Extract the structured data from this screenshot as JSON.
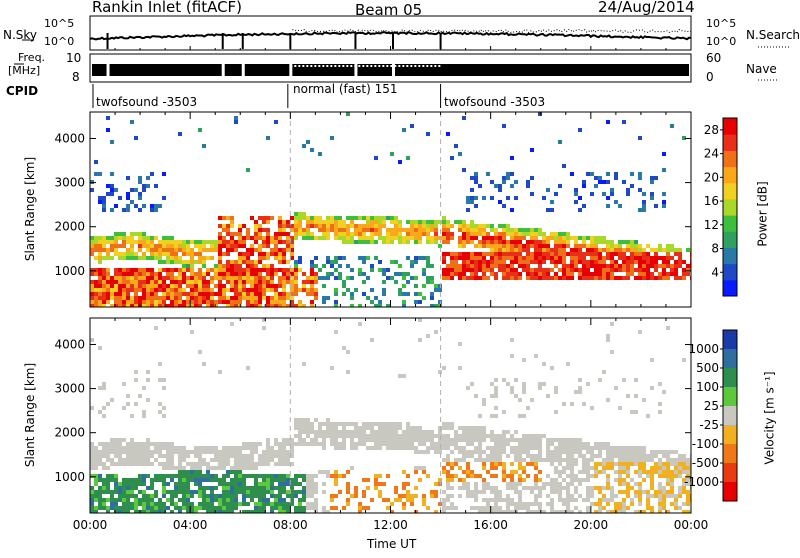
{
  "header": {
    "station": "Rankin Inlet (fitACF)",
    "beam": "Beam 05",
    "date": "24/Aug/2014"
  },
  "noise_panel": {
    "left_label": "N.Sky",
    "right_label": "N.Search",
    "left_ticks": [
      "10^5",
      "10^0"
    ],
    "right_ticks": [
      "10^5",
      "10^0"
    ]
  },
  "freq_panel": {
    "left_label_1": "Freq.",
    "left_label_2": "[MHz]",
    "right_label": "Nave",
    "left_ticks": [
      "10",
      "8"
    ],
    "right_ticks": [
      "60",
      "0"
    ]
  },
  "cpid": {
    "label": "CPID",
    "segments": [
      {
        "name": "twofsound -3503",
        "start_hour": 0.0,
        "end_hour": 7.9
      },
      {
        "name": "normal (fast) 151",
        "start_hour": 7.9,
        "end_hour": 14.0
      },
      {
        "name": "twofsound -3503",
        "start_hour": 14.0,
        "end_hour": 24.0
      }
    ]
  },
  "chart_data": [
    {
      "type": "heatmap",
      "parameter": "Power",
      "ylabel": "Slant Range [km]",
      "ylim": [
        180,
        4600
      ],
      "yticks": [
        1000,
        2000,
        3000,
        4000
      ],
      "xlim": [
        0,
        24
      ],
      "colorbar": {
        "label": "Power [dB]",
        "ticks": [
          "4",
          "8",
          "12",
          "16",
          "20",
          "24",
          "28"
        ],
        "range": [
          0,
          30
        ],
        "colors": [
          "#0a1aff",
          "#1e48c8",
          "#2878a8",
          "#2ea060",
          "#3cbf3c",
          "#a8d828",
          "#f0d020",
          "#f8a818",
          "#f07018",
          "#e83018",
          "#e80000"
        ]
      }
    },
    {
      "type": "heatmap",
      "parameter": "Velocity",
      "ylabel": "Slant Range [km]",
      "ylim": [
        180,
        4600
      ],
      "yticks": [
        1000,
        2000,
        3000,
        4000
      ],
      "xlim": [
        0,
        24
      ],
      "xlabel": "Time UT",
      "xtick_labels": [
        "00:00",
        "04:00",
        "08:00",
        "12:00",
        "16:00",
        "20:00",
        "00:00"
      ],
      "colorbar": {
        "label": "Velocity [m s⁻¹]",
        "ticks": [
          "1000",
          "500",
          "100",
          "25",
          "-25",
          "-100",
          "-500",
          "-1000"
        ],
        "colors": [
          "#1a3aa8",
          "#2f6fa0",
          "#2e8e4e",
          "#5cc83c",
          "#c8c8c0",
          "#f0b020",
          "#f07818",
          "#e83c10",
          "#e80000"
        ]
      }
    }
  ]
}
